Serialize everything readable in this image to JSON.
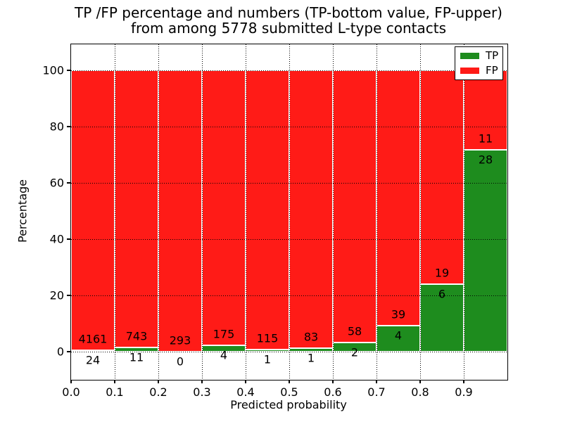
{
  "title": {
    "line1": "TP /FP percentage and numbers (TP-bottom value, FP-upper)",
    "line2": "from among 5778 submitted L-type contacts"
  },
  "axes": {
    "xlabel": "Predicted probability",
    "ylabel": "Percentage"
  },
  "legend": {
    "entries": [
      {
        "label": "TP",
        "color": "#1e8c1e"
      },
      {
        "label": "FP",
        "color": "#ff1b17"
      }
    ],
    "position": "upper right"
  },
  "colors": {
    "tp": "#1e8c1e",
    "fp": "#ff1b17",
    "bar_edge": "#ffffff",
    "grid": "#000000",
    "axis": "#000000",
    "background": "#ffffff"
  },
  "chart_data": {
    "type": "bar",
    "stacked": true,
    "normalized": "each bar totals 100%",
    "title": "TP /FP percentage and numbers (TP-bottom value, FP-upper)\nfrom among 5778 submitted L-type contacts",
    "xlabel": "Predicted probability",
    "ylabel": "Percentage",
    "categories": [
      "0.0",
      "0.1",
      "0.2",
      "0.3",
      "0.4",
      "0.5",
      "0.6",
      "0.7",
      "0.8",
      "0.9"
    ],
    "bin_width": 0.1,
    "series": [
      {
        "name": "TP",
        "color": "#1e8c1e",
        "counts": [
          24,
          11,
          0,
          4,
          1,
          1,
          2,
          4,
          6,
          28
        ]
      },
      {
        "name": "FP",
        "color": "#ff1b17",
        "counts": [
          4161,
          743,
          293,
          175,
          115,
          83,
          58,
          39,
          19,
          11
        ]
      }
    ],
    "tp_percent_of_bin": [
      0.57,
      1.46,
      0.0,
      2.23,
      0.86,
      1.19,
      3.33,
      9.3,
      24.0,
      71.79
    ],
    "total_contacts": 5778,
    "xlim": [
      0.0,
      1.0
    ],
    "ylim": [
      -10,
      109.25
    ],
    "yticks": [
      0,
      20,
      40,
      60,
      80,
      100
    ],
    "xticks": [
      "0.0",
      "0.1",
      "0.2",
      "0.3",
      "0.4",
      "0.5",
      "0.6",
      "0.7",
      "0.8",
      "0.9"
    ],
    "grid": "dotted black",
    "legend_position": "upper right"
  }
}
